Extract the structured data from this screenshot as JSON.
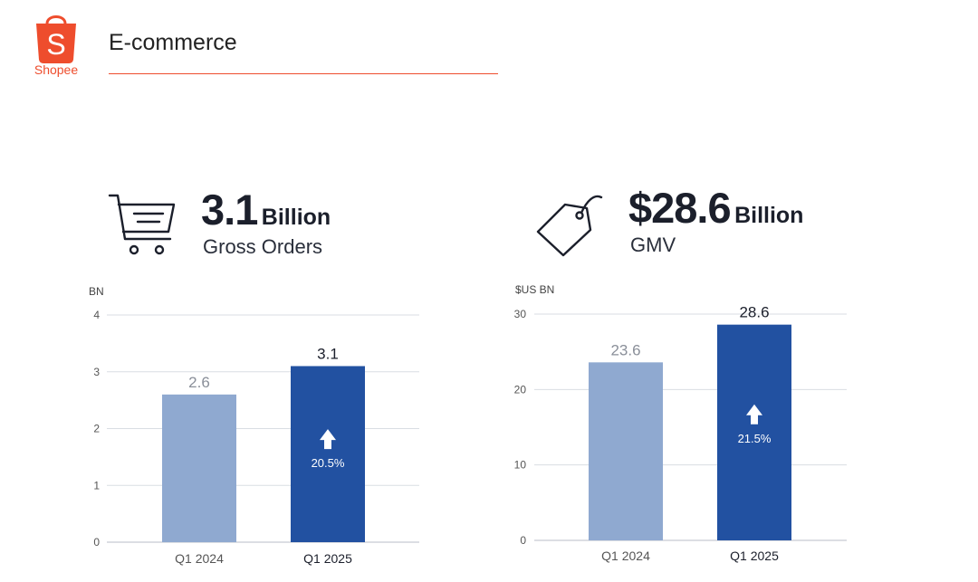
{
  "header": {
    "logo_text": "Shopee",
    "title": "E-commerce"
  },
  "kpis": [
    {
      "value": "3.1",
      "unit": "Billion",
      "label": "Gross Orders",
      "icon": "shopping-cart-icon"
    },
    {
      "value": "$28.6",
      "unit": "Billion",
      "label": "GMV",
      "icon": "price-tag-icon"
    }
  ],
  "colors": {
    "brand": "#ee4d2d",
    "bar_prior": "#8fa9d0",
    "bar_current": "#2251a1",
    "grid": "#d9dde3",
    "prior_label": "#8a8f99",
    "current_label": "#1b1f2b"
  },
  "chart_data": [
    {
      "type": "bar",
      "ylabel": "BN",
      "ylim": [
        0,
        4
      ],
      "yticks": [
        0,
        1,
        2,
        3,
        4
      ],
      "categories": [
        "Q1 2024",
        "Q1 2025"
      ],
      "values": [
        2.6,
        3.1
      ],
      "value_labels": [
        "2.6",
        "3.1"
      ],
      "growth_label": "20.5%",
      "grid": true
    },
    {
      "type": "bar",
      "ylabel": "$US BN",
      "ylim": [
        0,
        30
      ],
      "yticks": [
        0,
        10,
        20,
        30
      ],
      "categories": [
        "Q1 2024",
        "Q1 2025"
      ],
      "values": [
        23.6,
        28.6
      ],
      "value_labels": [
        "23.6",
        "28.6"
      ],
      "growth_label": "21.5%",
      "grid": true
    }
  ]
}
